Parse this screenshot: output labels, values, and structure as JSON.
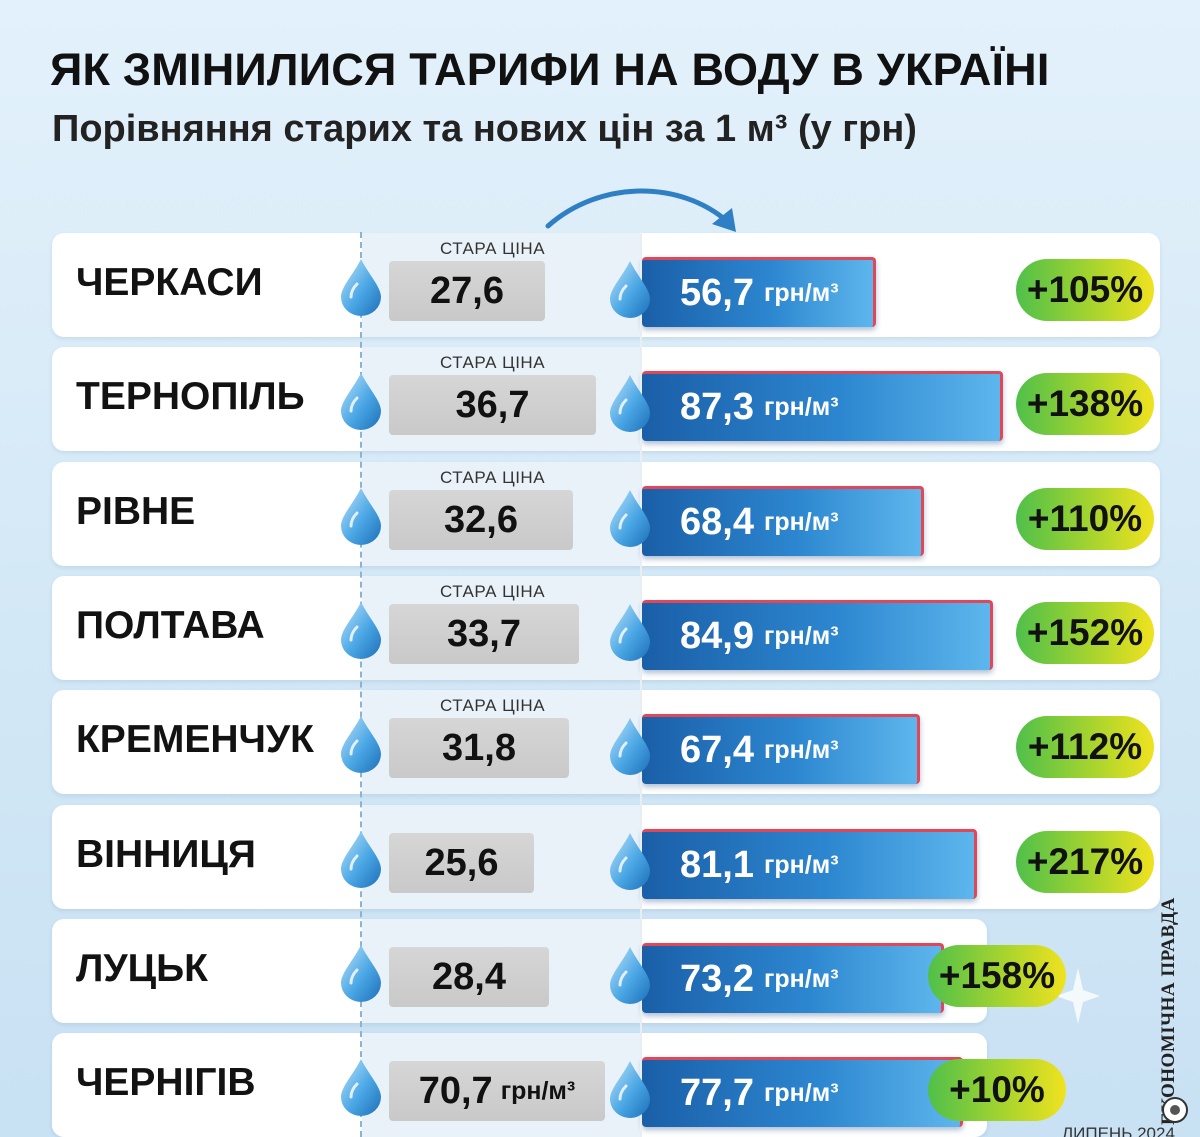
{
  "title": "ЯК ЗМІНИЛИСЯ ТАРИФИ НА ВОДУ В УКРАЇНІ",
  "subtitle": "Порівняння старих та нових цін за 1 м³ (у грн)",
  "old_price_label": "СТАРА ЦІНА",
  "unit": "грн/м³",
  "brand": "ЕКОНОМІЧНА ПРАВДА",
  "date": "ЛИПЕНЬ 2024",
  "colors": {
    "new_bar": "#2c86cf",
    "old_box": "#d0d0d0",
    "pct_badge_start": "#4fc04a",
    "pct_badge_end": "#f0e21f",
    "bar_edge": "#e0485a"
  },
  "chart_data": {
    "type": "bar",
    "title": "ЯК ЗМІНИЛИСЯ ТАРИФИ НА ВОДУ В УКРАЇНІ",
    "subtitle": "Порівняння старих та нових цін за 1 м³ (у грн)",
    "categories": [
      "ЧЕРКАСИ",
      "ТЕРНОПІЛЬ",
      "РІВНЕ",
      "ПОЛТАВА",
      "КРЕМЕНЧУК",
      "ВІННИЦЯ",
      "ЛУЦЬК",
      "ЧЕРНІГІВ"
    ],
    "series": [
      {
        "name": "СТАРА ЦІНА",
        "values": [
          27.6,
          36.7,
          32.6,
          33.7,
          31.8,
          25.6,
          28.4,
          70.7
        ]
      },
      {
        "values": [
          56.7,
          87.3,
          68.4,
          84.9,
          67.4,
          81.1,
          73.2,
          77.7
        ]
      }
    ],
    "old_labels": [
      "27,6",
      "36,7",
      "32,6",
      "33,7",
      "31,8",
      "25,6",
      "28,4",
      "70,7"
    ],
    "old_label_shown": [
      true,
      true,
      true,
      true,
      true,
      false,
      false,
      false
    ],
    "old_unit_shown": [
      false,
      false,
      false,
      false,
      false,
      false,
      false,
      true
    ],
    "new_labels": [
      "56,7",
      "87,3",
      "68,4",
      "84,9",
      "67,4",
      "81,1",
      "73,2",
      "77,7"
    ],
    "change_labels": [
      "+105%",
      "+138%",
      "+110%",
      "+152%",
      "+112%",
      "+217%",
      "+158%",
      "+10%"
    ],
    "xlim": [
      0,
      90
    ]
  }
}
